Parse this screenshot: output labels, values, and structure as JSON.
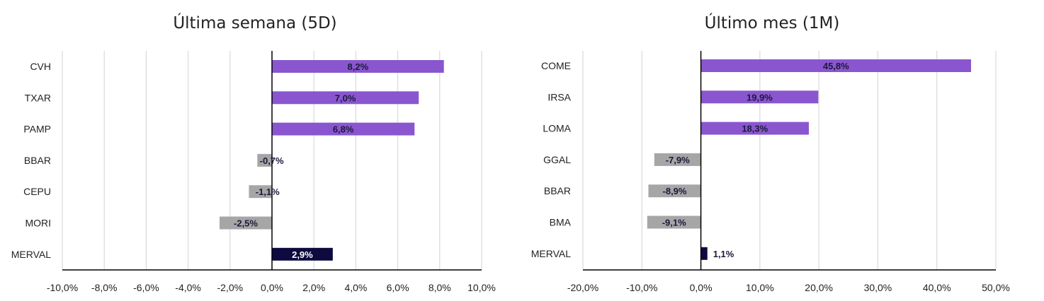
{
  "chart_data": [
    {
      "type": "bar",
      "orientation": "horizontal",
      "title": "Última semana (5D)",
      "categories": [
        "CVH",
        "TXAR",
        "PAMP",
        "BBAR",
        "CEPU",
        "MORI",
        "MERVAL"
      ],
      "values": [
        8.2,
        7.0,
        6.8,
        -0.7,
        -1.1,
        -2.5,
        2.9
      ],
      "data_labels": [
        "8,2%",
        "7,0%",
        "6,8%",
        "-0,7%",
        "-1,1%",
        "-2,5%",
        "2,9%"
      ],
      "xlim": [
        -10,
        10
      ],
      "ticks": [
        -10,
        -8,
        -6,
        -4,
        -2,
        0,
        2,
        4,
        6,
        8,
        10
      ],
      "tick_labels": [
        "-10,0%",
        "-8,0%",
        "-6,0%",
        "-4,0%",
        "-2,0%",
        "0,0%",
        "2,0%",
        "4,0%",
        "6,0%",
        "8,0%",
        "10,0%"
      ],
      "grid": true,
      "legend": "none",
      "colors": {
        "positive": "#8a56cf",
        "negative": "#a6a6a6",
        "index": "#0c0a3e"
      }
    },
    {
      "type": "bar",
      "orientation": "horizontal",
      "title": "Último mes (1M)",
      "categories": [
        "COME",
        "IRSA",
        "LOMA",
        "GGAL",
        "BBAR",
        "BMA",
        "MERVAL"
      ],
      "values": [
        45.8,
        19.9,
        18.3,
        -7.9,
        -8.9,
        -9.1,
        1.1
      ],
      "data_labels": [
        "45,8%",
        "19,9%",
        "18,3%",
        "-7,9%",
        "-8,9%",
        "-9,1%",
        "1,1%"
      ],
      "xlim": [
        -20,
        50
      ],
      "ticks": [
        -20,
        -10,
        0,
        10,
        20,
        30,
        40,
        50
      ],
      "tick_labels": [
        "-20,0%",
        "-10,0%",
        "0,0%",
        "10,0%",
        "20,0%",
        "30,0%",
        "40,0%",
        "50,0%"
      ],
      "grid": true,
      "legend": "none",
      "colors": {
        "positive": "#8a56cf",
        "negative": "#a6a6a6",
        "index": "#0c0a3e"
      }
    }
  ]
}
